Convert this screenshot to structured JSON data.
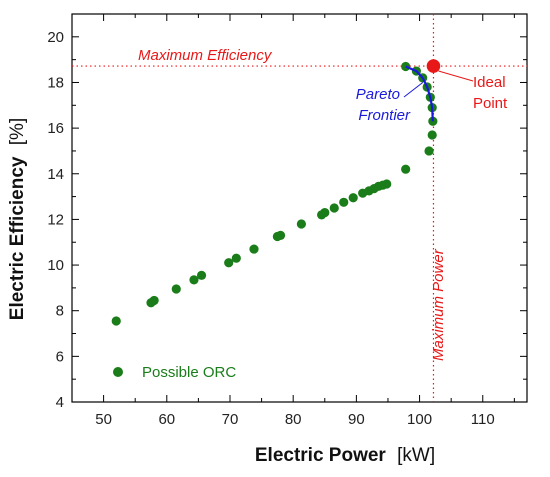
{
  "chart_data": {
    "type": "scatter",
    "xlabel": "Electric Power",
    "xunit": "[kW]",
    "ylabel": "Electric Efficiency",
    "yunit": "[%]",
    "xlim": [
      45,
      117
    ],
    "ylim": [
      4,
      21
    ],
    "xticks": [
      50,
      60,
      70,
      80,
      90,
      100,
      110
    ],
    "yticks": [
      4,
      6,
      8,
      10,
      12,
      14,
      16,
      18,
      20
    ],
    "grid": false,
    "legend": {
      "placement": "bottom-left",
      "label": "Possible ORC",
      "color": "#1a7d1a"
    },
    "series": [
      {
        "name": "Possible ORC",
        "color": "#1a7d1a",
        "points": [
          [
            52.0,
            7.55
          ],
          [
            57.5,
            8.35
          ],
          [
            58.0,
            8.45
          ],
          [
            61.5,
            8.95
          ],
          [
            64.3,
            9.35
          ],
          [
            65.5,
            9.55
          ],
          [
            69.8,
            10.1
          ],
          [
            71.0,
            10.3
          ],
          [
            73.8,
            10.7
          ],
          [
            77.5,
            11.25
          ],
          [
            78.0,
            11.3
          ],
          [
            81.3,
            11.8
          ],
          [
            84.5,
            12.2
          ],
          [
            85.0,
            12.3
          ],
          [
            86.5,
            12.5
          ],
          [
            88.0,
            12.75
          ],
          [
            89.5,
            12.95
          ],
          [
            91.0,
            13.15
          ],
          [
            92.0,
            13.25
          ],
          [
            92.8,
            13.35
          ],
          [
            93.5,
            13.45
          ],
          [
            94.2,
            13.5
          ],
          [
            94.8,
            13.55
          ],
          [
            97.8,
            14.2
          ],
          [
            101.5,
            15.0
          ],
          [
            102.0,
            15.7
          ],
          [
            102.1,
            16.3
          ],
          [
            102.0,
            16.9
          ],
          [
            101.7,
            17.35
          ],
          [
            101.2,
            17.8
          ],
          [
            100.5,
            18.2
          ],
          [
            99.5,
            18.5
          ],
          [
            97.8,
            18.7
          ]
        ]
      },
      {
        "name": "Pareto Frontier",
        "color": "#1a1adc",
        "points": [
          [
            97.8,
            18.7
          ],
          [
            99.5,
            18.5
          ],
          [
            100.5,
            18.2
          ],
          [
            101.2,
            17.8
          ],
          [
            101.7,
            17.35
          ],
          [
            102.0,
            16.9
          ],
          [
            102.1,
            16.3
          ]
        ]
      }
    ],
    "ideal_point": {
      "x": 102.2,
      "y": 18.72,
      "color": "#e81818"
    },
    "reference_lines": {
      "max_efficiency": {
        "y": 18.72,
        "label": "Maximum Efficiency",
        "color": "#e81818"
      },
      "max_power": {
        "x": 102.2,
        "label": "Maximum Power",
        "color": "#e81818"
      }
    },
    "annotations": {
      "pareto": {
        "line1": "Pareto",
        "line2": "Frontier",
        "color": "#1a1adc"
      },
      "ideal": {
        "line1": "Ideal",
        "line2": "Point",
        "color": "#e81818"
      }
    }
  }
}
